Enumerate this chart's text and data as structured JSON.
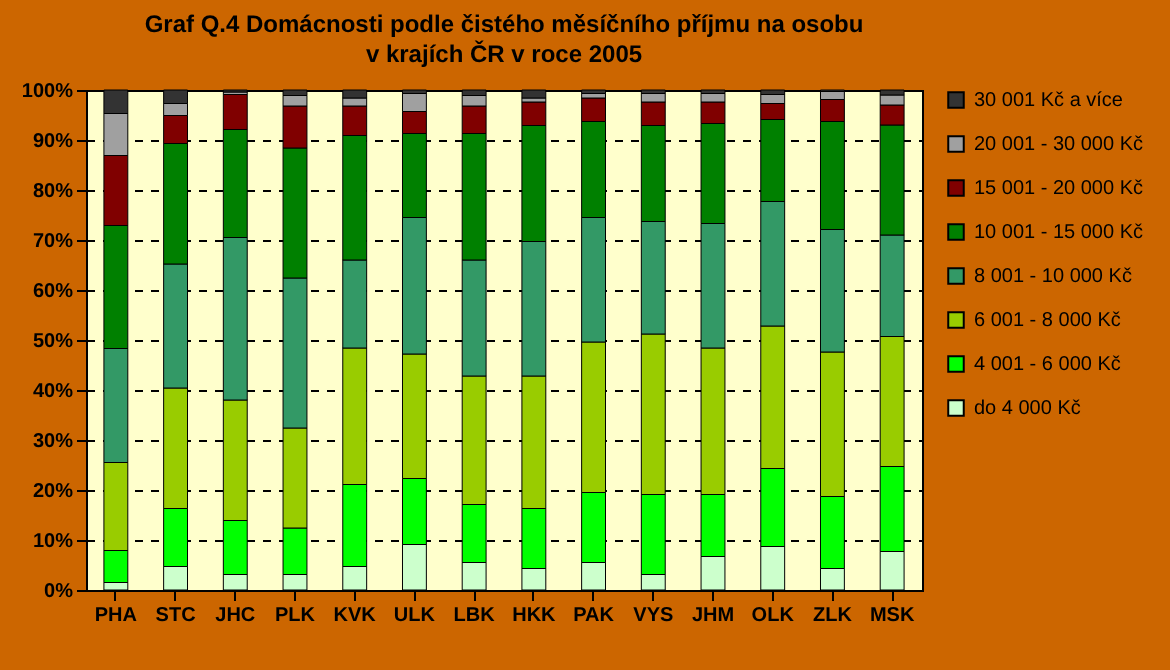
{
  "chart_data": {
    "type": "bar",
    "title": "Graf Q.4 Domácnosti podle čistého měsíčního příjmu na osobu\nv krajích ČR v roce 2005",
    "stacked": true,
    "legend": "right",
    "grid": "y",
    "categories": [
      "PHA",
      "STC",
      "JHC",
      "PLK",
      "KVK",
      "ULK",
      "LBK",
      "HKK",
      "PAK",
      "VYS",
      "JHM",
      "OLK",
      "ZLK",
      "MSK"
    ],
    "ylim": [
      0,
      100
    ],
    "yticks": [
      {
        "value": 0,
        "label": "0%"
      },
      {
        "value": 10,
        "label": "10%"
      },
      {
        "value": 20,
        "label": "20%"
      },
      {
        "value": 30,
        "label": "30%"
      },
      {
        "value": 40,
        "label": "40%"
      },
      {
        "value": 50,
        "label": "50%"
      },
      {
        "value": 60,
        "label": "60%"
      },
      {
        "value": 70,
        "label": "70%"
      },
      {
        "value": 80,
        "label": "80%"
      },
      {
        "value": 90,
        "label": "90%"
      },
      {
        "value": 100,
        "label": "100%"
      }
    ],
    "series": [
      {
        "name": "do 4 000 Kč",
        "color": "#ccffcc",
        "values": [
          1.5,
          4.7,
          3.1,
          3.1,
          4.7,
          9.1,
          5.5,
          4.3,
          5.5,
          3.1,
          6.7,
          8.7,
          4.3,
          7.7
        ]
      },
      {
        "name": "4 001 - 6 000 Kč",
        "color": "#00ff00",
        "values": [
          6.4,
          11.6,
          10.8,
          9.3,
          16.4,
          13.2,
          11.6,
          12.0,
          14.0,
          16.0,
          12.4,
          15.6,
          14.4,
          17.0
        ]
      },
      {
        "name": "6 001 - 8 000 Kč",
        "color": "#99cc00",
        "values": [
          17.6,
          24.1,
          24.1,
          20.0,
          27.3,
          24.9,
          25.7,
          26.5,
          30.1,
          32.1,
          29.3,
          28.5,
          28.9,
          26.0
        ]
      },
      {
        "name": "8 001 - 10 000 Kč",
        "color": "#339966",
        "values": [
          22.8,
          24.8,
          32.5,
          30.0,
          17.6,
          27.3,
          23.2,
          26.9,
          24.9,
          22.5,
          24.9,
          24.9,
          24.5,
          20.3
        ]
      },
      {
        "name": "10 001 - 15 000 Kč",
        "color": "#008000",
        "values": [
          24.6,
          24.1,
          21.6,
          26.0,
          24.9,
          16.8,
          25.3,
          23.2,
          19.2,
          19.2,
          20.0,
          16.4,
          21.6,
          22.0
        ]
      },
      {
        "name": "15 001 - 20 000 Kč",
        "color": "#800000",
        "values": [
          14.0,
          5.6,
          7.0,
          8.4,
          5.9,
          4.4,
          5.5,
          4.7,
          4.7,
          4.7,
          4.3,
          3.2,
          4.4,
          4.0
        ]
      },
      {
        "name": "20 001 - 30 000 Kč",
        "color": "#a0a0a0",
        "values": [
          8.4,
          2.4,
          0.5,
          2.1,
          1.6,
          3.6,
          2.1,
          0.8,
          0.9,
          1.7,
          1.7,
          1.8,
          1.6,
          2.0
        ]
      },
      {
        "name": "30 001 Kč a více",
        "color": "#333333",
        "values": [
          4.7,
          2.7,
          0.4,
          1.1,
          1.6,
          0.7,
          1.1,
          1.6,
          0.7,
          0.7,
          0.7,
          0.9,
          0.3,
          1.0
        ]
      }
    ]
  }
}
